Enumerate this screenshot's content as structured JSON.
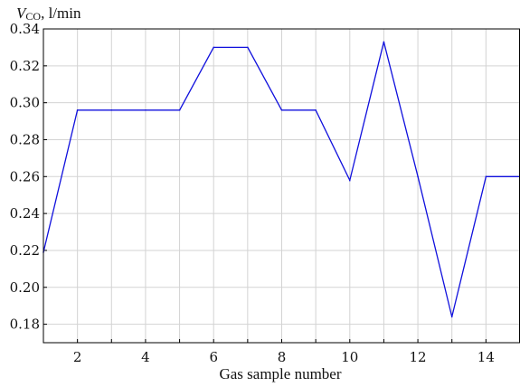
{
  "chart_data": {
    "type": "line",
    "xlabel": "Gas sample number",
    "ylabel": {
      "symbol": "V",
      "subscript": "CO",
      "unit": ", l/min"
    },
    "xlim": [
      1,
      15
    ],
    "ylim": [
      0.17,
      0.34
    ],
    "x_ticks": [
      2,
      4,
      6,
      8,
      10,
      12,
      14
    ],
    "x_grid": [
      1,
      2,
      3,
      4,
      5,
      6,
      7,
      8,
      9,
      10,
      11,
      12,
      13,
      14,
      15
    ],
    "y_ticks": [
      0.18,
      0.2,
      0.22,
      0.24,
      0.26,
      0.28,
      0.3,
      0.32,
      0.34
    ],
    "y_tick_labels": [
      "0.18",
      "0.20",
      "0.22",
      "0.24",
      "0.26",
      "0.28",
      "0.30",
      "0.32",
      "0.34"
    ],
    "grid": true,
    "series": [
      {
        "color": "#1010dd",
        "x": [
          1,
          2,
          3,
          4,
          5,
          6,
          7,
          8,
          9,
          10,
          11,
          12,
          13,
          14,
          15
        ],
        "y": [
          0.219,
          0.296,
          0.296,
          0.296,
          0.296,
          0.33,
          0.33,
          0.296,
          0.296,
          0.258,
          0.333,
          0.26,
          0.184,
          0.26,
          0.26
        ]
      }
    ]
  }
}
